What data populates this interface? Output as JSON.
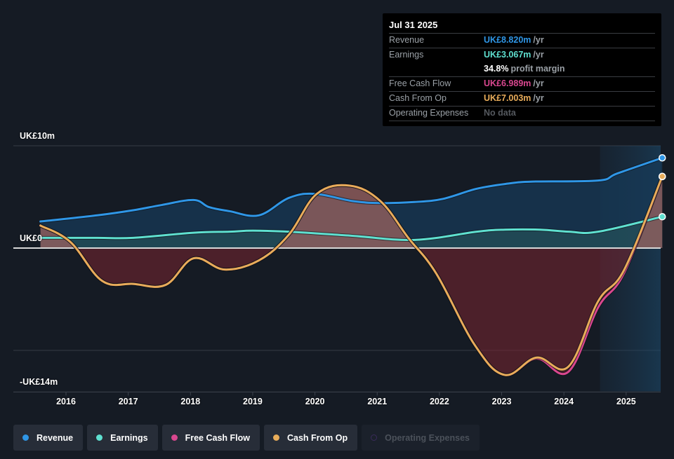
{
  "tooltip": {
    "date": "Jul 31 2025",
    "rows": [
      {
        "label": "Revenue",
        "value": "UK£8.820m",
        "unit": "/yr",
        "color": "#2f96e6"
      },
      {
        "label": "Earnings",
        "value": "UK£3.067m",
        "unit": "/yr",
        "color": "#5fe0d0"
      },
      {
        "label": "",
        "margin_value": "34.8%",
        "margin_text": "profit margin"
      },
      {
        "label": "Free Cash Flow",
        "value": "UK£6.989m",
        "unit": "/yr",
        "color": "#d9478f"
      },
      {
        "label": "Cash From Op",
        "value": "UK£7.003m",
        "unit": "/yr",
        "color": "#e8ac5a"
      },
      {
        "label": "Operating Expenses",
        "value": "No data"
      }
    ]
  },
  "legend": [
    {
      "label": "Revenue",
      "color": "#2f96e6",
      "enabled": true
    },
    {
      "label": "Earnings",
      "color": "#5fe0d0",
      "enabled": true
    },
    {
      "label": "Free Cash Flow",
      "color": "#d9478f",
      "enabled": true
    },
    {
      "label": "Cash From Op",
      "color": "#e8ac5a",
      "enabled": true
    },
    {
      "label": "Operating Expenses",
      "color": "#3a2a5a",
      "enabled": false
    }
  ],
  "chart_data": {
    "type": "line",
    "title": "",
    "xlabel": "",
    "ylabel": "",
    "currency_unit": "UK£ millions",
    "y_tick_labels": [
      {
        "value": 10,
        "label": "UK£10m"
      },
      {
        "value": 0,
        "label": "UK£0"
      },
      {
        "value": -14,
        "label": "-UK£14m"
      }
    ],
    "ylim": [
      -14,
      10
    ],
    "y_gridlines": [
      10,
      -10
    ],
    "x_tick_labels": [
      "2016",
      "2017",
      "2018",
      "2019",
      "2020",
      "2021",
      "2022",
      "2023",
      "2024",
      "2025"
    ],
    "xlim": [
      2015.6,
      2025.58
    ],
    "highlight_range": [
      2024.58,
      2025.58
    ],
    "legend_position": "bottom",
    "series": [
      {
        "name": "Revenue",
        "color": "#2f96e6",
        "x": [
          2015.59,
          2016.5,
          2017.08,
          2017.53,
          2018.05,
          2018.3,
          2018.63,
          2019.1,
          2019.58,
          2020.0,
          2020.6,
          2021.05,
          2021.6,
          2022.05,
          2022.6,
          2023.1,
          2023.5,
          2024.55,
          2024.86,
          2025.58
        ],
        "values": [
          2.6,
          3.2,
          3.7,
          4.2,
          4.7,
          4.0,
          3.6,
          3.2,
          4.9,
          5.3,
          4.6,
          4.4,
          4.5,
          4.8,
          5.8,
          6.3,
          6.5,
          6.6,
          7.3,
          8.82
        ]
      },
      {
        "name": "Earnings",
        "color": "#5fe0d0",
        "x": [
          2015.59,
          2016.5,
          2017.08,
          2018.05,
          2018.63,
          2019.0,
          2019.58,
          2020.6,
          2021.6,
          2022.6,
          2023.05,
          2023.62,
          2024.08,
          2024.55,
          2025.58
        ],
        "values": [
          1.0,
          1.0,
          1.0,
          1.5,
          1.6,
          1.7,
          1.6,
          1.2,
          0.8,
          1.6,
          1.8,
          1.8,
          1.6,
          1.6,
          3.067
        ]
      },
      {
        "name": "Free Cash Flow",
        "color": "#d9478f",
        "x": [
          2015.59,
          2016.07,
          2016.58,
          2017.08,
          2017.6,
          2018.05,
          2018.55,
          2019.1,
          2019.58,
          2020.03,
          2020.56,
          2021.05,
          2021.5,
          2021.95,
          2022.57,
          2023.05,
          2023.56,
          2024.07,
          2024.55,
          2024.97,
          2025.58
        ],
        "values": [
          2.2,
          0.6,
          -3.2,
          -3.5,
          -3.6,
          -1.0,
          -2.1,
          -1.2,
          1.3,
          5.3,
          6.1,
          4.6,
          1.0,
          -2.5,
          -9.5,
          -12.4,
          -10.8,
          -12.1,
          -5.8,
          -2.4,
          6.989
        ]
      },
      {
        "name": "Cash From Op",
        "color": "#e8ac5a",
        "x": [
          2015.59,
          2016.07,
          2016.58,
          2017.08,
          2017.6,
          2018.05,
          2018.55,
          2019.1,
          2019.58,
          2020.03,
          2020.56,
          2021.05,
          2021.5,
          2021.95,
          2022.57,
          2023.05,
          2023.56,
          2024.07,
          2024.55,
          2024.97,
          2025.58
        ],
        "values": [
          2.2,
          0.6,
          -3.2,
          -3.5,
          -3.6,
          -1.0,
          -2.1,
          -1.2,
          1.3,
          5.3,
          6.1,
          4.6,
          1.0,
          -2.5,
          -9.5,
          -12.4,
          -10.7,
          -11.6,
          -5.2,
          -2.1,
          7.003
        ]
      }
    ]
  }
}
